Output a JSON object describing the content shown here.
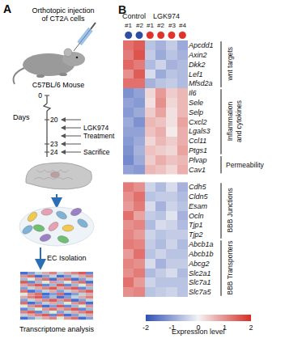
{
  "panel_a": {
    "label": "A",
    "injection_lines": [
      "Orthotopic injection",
      "of CT2A cells"
    ],
    "mouse": "C57BL/6 Mouse",
    "axis_label": "Days",
    "days": [
      0,
      20,
      23,
      24
    ],
    "treatment_lines": [
      "LGK974",
      "Treatment"
    ],
    "sacrifice": "Sacrifice",
    "isolation": "EC Isolation",
    "analysis": "Transcriptome analysis"
  },
  "chart_data": {
    "type": "heatmap",
    "panel_label": "B",
    "groups": [
      {
        "name": "Control",
        "color": "#2c4ea3"
      },
      {
        "name": "LGK974",
        "color": "#e0332b"
      }
    ],
    "columns": [
      {
        "label": "#1",
        "group": "Control"
      },
      {
        "label": "#2",
        "group": "Control"
      },
      {
        "label": "#1",
        "group": "LGK974"
      },
      {
        "label": "#2",
        "group": "LGK974"
      },
      {
        "label": "#3",
        "group": "LGK974"
      },
      {
        "label": "#4",
        "group": "LGK974"
      }
    ],
    "blocks": [
      {
        "groups": [
          {
            "label_lines": [
              "wnt targets"
            ],
            "rows": [
              {
                "gene": "Apcdd1",
                "values": [
                  1.3,
                  1.5,
                  -0.6,
                  -0.8,
                  -0.5,
                  -0.9
                ]
              },
              {
                "gene": "Axin2",
                "values": [
                  1.2,
                  1.6,
                  -0.5,
                  -0.9,
                  -0.6,
                  -0.8
                ]
              },
              {
                "gene": "Dkk2",
                "values": [
                  1.4,
                  1.2,
                  -0.7,
                  -0.4,
                  -0.8,
                  -0.7
                ]
              },
              {
                "gene": "Lef1",
                "values": [
                  1.0,
                  1.5,
                  -0.3,
                  -0.9,
                  -0.6,
                  -0.7
                ]
              },
              {
                "gene": "Mfsd2a",
                "values": [
                  1.3,
                  1.3,
                  -0.8,
                  -0.6,
                  -0.5,
                  -0.7
                ]
              }
            ]
          },
          {
            "label_lines": [
              "Inflammation",
              "and cytokines"
            ],
            "rows": [
              {
                "gene": "Il6",
                "values": [
                  -1.2,
                  -1.0,
                  0.3,
                  0.9,
                  0.4,
                  0.6
                ]
              },
              {
                "gene": "Sele",
                "values": [
                  -1.0,
                  -1.1,
                  0.2,
                  1.0,
                  0.3,
                  0.6
                ]
              },
              {
                "gene": "Selp",
                "values": [
                  -1.1,
                  -0.9,
                  0.4,
                  0.8,
                  0.2,
                  0.6
                ]
              },
              {
                "gene": "Cxcl2",
                "values": [
                  -0.9,
                  -1.2,
                  0.6,
                  0.5,
                  0.2,
                  0.8
                ]
              },
              {
                "gene": "Lgals3",
                "values": [
                  -1.0,
                  -1.0,
                  0.5,
                  0.7,
                  0.1,
                  0.7
                ]
              },
              {
                "gene": "Ccl11",
                "values": [
                  -1.1,
                  -0.9,
                  0.3,
                  0.6,
                  0.4,
                  0.7
                ]
              },
              {
                "gene": "Ptgs1",
                "values": [
                  -1.2,
                  -0.8,
                  0.5,
                  0.4,
                  0.3,
                  0.8
                ]
              }
            ]
          },
          {
            "label_lines": [
              "Permeability"
            ],
            "rows": [
              {
                "gene": "Plvap",
                "values": [
                  -1.3,
                  -0.9,
                  0.4,
                  0.7,
                  0.5,
                  0.6
                ]
              },
              {
                "gene": "Cav1",
                "values": [
                  -1.0,
                  -1.1,
                  0.6,
                  0.5,
                  0.3,
                  0.7
                ]
              }
            ]
          }
        ]
      },
      {
        "groups": [
          {
            "label_lines": [
              "BBB Junctions"
            ],
            "rows": [
              {
                "gene": "Cdh5",
                "values": [
                  1.2,
                  1.0,
                  -0.4,
                  -0.7,
                  -0.3,
                  -0.8
                ]
              },
              {
                "gene": "Cldn5",
                "values": [
                  1.0,
                  1.3,
                  -0.6,
                  -0.5,
                  -0.5,
                  -0.7
                ]
              },
              {
                "gene": "Esam",
                "values": [
                  0.9,
                  1.2,
                  -0.3,
                  -0.8,
                  -0.4,
                  -0.6
                ]
              },
              {
                "gene": "Ocln",
                "values": [
                  1.3,
                  0.8,
                  -0.5,
                  -0.6,
                  -0.2,
                  -0.8
                ]
              },
              {
                "gene": "Tjp1",
                "values": [
                  1.0,
                  1.1,
                  -0.7,
                  -0.3,
                  -0.4,
                  -0.7
                ]
              },
              {
                "gene": "Tjp2",
                "values": [
                  1.1,
                  0.9,
                  -0.4,
                  -0.6,
                  -0.5,
                  -0.5
                ]
              }
            ]
          },
          {
            "label_lines": [
              "BBB Transporters"
            ],
            "rows": [
              {
                "gene": "Abcb1a",
                "values": [
                  1.2,
                  1.1,
                  -0.5,
                  -0.7,
                  -0.4,
                  -0.7
                ]
              },
              {
                "gene": "Abcb1b",
                "values": [
                  0.9,
                  1.3,
                  -0.6,
                  -0.4,
                  -0.6,
                  -0.6
                ]
              },
              {
                "gene": "Abcg2",
                "values": [
                  1.1,
                  1.0,
                  -0.3,
                  -0.8,
                  -0.5,
                  -0.5
                ]
              },
              {
                "gene": "Slc2a1",
                "values": [
                  1.0,
                  1.2,
                  -0.7,
                  -0.5,
                  -0.3,
                  -0.7
                ]
              },
              {
                "gene": "Slc7a1",
                "values": [
                  1.3,
                  0.9,
                  -0.4,
                  -0.6,
                  -0.6,
                  -0.6
                ]
              },
              {
                "gene": "Slc7a5",
                "values": [
                  1.0,
                  1.1,
                  -0.6,
                  -0.5,
                  -0.4,
                  -0.6
                ]
              }
            ]
          }
        ]
      }
    ],
    "zlim": [
      -2,
      2
    ],
    "zticks": [
      -2,
      -1,
      0,
      1,
      2
    ],
    "colorbar_title": "Expression level"
  }
}
